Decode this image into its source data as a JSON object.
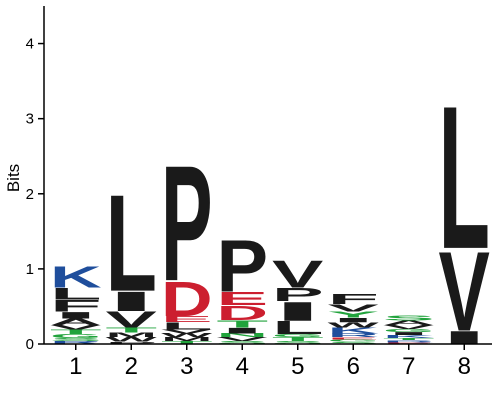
{
  "chart_data": {
    "type": "sequence-logo",
    "ylabel": "Bits",
    "ylim": [
      0,
      4.5
    ],
    "yticks": [
      0,
      1,
      2,
      3,
      4
    ],
    "positions": [
      "1",
      "2",
      "3",
      "4",
      "5",
      "6",
      "7",
      "8"
    ],
    "grid": false,
    "colors": {
      "P": "#1a1a1a",
      "L": "#1a1a1a",
      "V": "#1a1a1a",
      "I": "#1a1a1a",
      "F": "#1a1a1a",
      "W": "#1a1a1a",
      "M": "#1a1a1a",
      "A": "#1a1a1a",
      "K": "#1f4e9c",
      "R": "#1f4e9c",
      "H": "#1f4e9c",
      "D": "#cc1f2f",
      "E": "#cc1f2f",
      "S": "#21a33c",
      "T": "#21a33c",
      "N": "#21a33c",
      "Q": "#21a33c",
      "G": "#21a33c",
      "Y": "#21a33c",
      "C": "#21a33c"
    },
    "stacks": [
      [
        {
          "letter": "R",
          "bits": 0.04
        },
        {
          "letter": "S",
          "bits": 0.04
        },
        {
          "letter": "G",
          "bits": 0.05
        },
        {
          "letter": "T",
          "bits": 0.06
        },
        {
          "letter": "V",
          "bits": 0.06
        },
        {
          "letter": "A",
          "bits": 0.09
        },
        {
          "letter": "I",
          "bits": 0.09
        },
        {
          "letter": "F",
          "bits": 0.16
        },
        {
          "letter": "L",
          "bits": 0.16
        },
        {
          "letter": "K",
          "bits": 0.3
        }
      ],
      [
        {
          "letter": "P",
          "bits": 0.03
        },
        {
          "letter": "W",
          "bits": 0.06
        },
        {
          "letter": "M",
          "bits": 0.06
        },
        {
          "letter": "T",
          "bits": 0.07
        },
        {
          "letter": "V",
          "bits": 0.22
        },
        {
          "letter": "I",
          "bits": 0.27
        },
        {
          "letter": "L",
          "bits": 1.34
        }
      ],
      [
        {
          "letter": "T",
          "bits": 0.04
        },
        {
          "letter": "M",
          "bits": 0.05
        },
        {
          "letter": "W",
          "bits": 0.05
        },
        {
          "letter": "V",
          "bits": 0.05
        },
        {
          "letter": "L",
          "bits": 0.1
        },
        {
          "letter": "E",
          "bits": 0.08
        },
        {
          "letter": "D",
          "bits": 0.48
        },
        {
          "letter": "P",
          "bits": 1.6
        }
      ],
      [
        {
          "letter": "S",
          "bits": 0.04
        },
        {
          "letter": "V",
          "bits": 0.05
        },
        {
          "letter": "N",
          "bits": 0.05
        },
        {
          "letter": "I",
          "bits": 0.08
        },
        {
          "letter": "T",
          "bits": 0.1
        },
        {
          "letter": "D",
          "bits": 0.2
        },
        {
          "letter": "E",
          "bits": 0.18
        },
        {
          "letter": "P",
          "bits": 0.72
        }
      ],
      [
        {
          "letter": "S",
          "bits": 0.04
        },
        {
          "letter": "T",
          "bits": 0.05
        },
        {
          "letter": "G",
          "bits": 0.04
        },
        {
          "letter": "L",
          "bits": 0.18
        },
        {
          "letter": "I",
          "bits": 0.26
        },
        {
          "letter": "P",
          "bits": 0.18
        },
        {
          "letter": "V",
          "bits": 0.38
        }
      ],
      [
        {
          "letter": "S",
          "bits": 0.03
        },
        {
          "letter": "G",
          "bits": 0.03
        },
        {
          "letter": "E",
          "bits": 0.03
        },
        {
          "letter": "R",
          "bits": 0.05
        },
        {
          "letter": "K",
          "bits": 0.08
        },
        {
          "letter": "W",
          "bits": 0.07
        },
        {
          "letter": "I",
          "bits": 0.06
        },
        {
          "letter": "Y",
          "bits": 0.08
        },
        {
          "letter": "V",
          "bits": 0.1
        },
        {
          "letter": "F",
          "bits": 0.14
        }
      ],
      [
        {
          "letter": "E",
          "bits": 0.02
        },
        {
          "letter": "R",
          "bits": 0.03
        },
        {
          "letter": "T",
          "bits": 0.03
        },
        {
          "letter": "K",
          "bits": 0.04
        },
        {
          "letter": "I",
          "bits": 0.04
        },
        {
          "letter": "G",
          "bits": 0.04
        },
        {
          "letter": "V",
          "bits": 0.05
        },
        {
          "letter": "A",
          "bits": 0.06
        },
        {
          "letter": "S",
          "bits": 0.07
        }
      ],
      [
        {
          "letter": "I",
          "bits": 0.18
        },
        {
          "letter": "V",
          "bits": 1.1
        },
        {
          "letter": "L",
          "bits": 1.98
        }
      ]
    ]
  }
}
